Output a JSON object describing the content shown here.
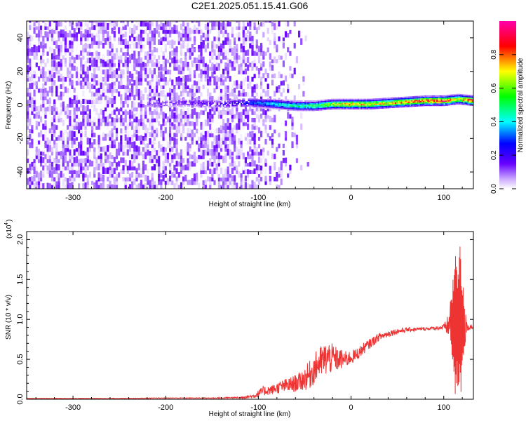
{
  "title": "C2E1.2025.051.15.41.G06",
  "chart_data": [
    {
      "type": "heatmap",
      "title": "C2E1.2025.051.15.41.G06",
      "xlabel": "Height of straight line (km)",
      "ylabel": "Frequency (Hz)",
      "xlim": [
        -350,
        132
      ],
      "ylim": [
        -50,
        50
      ],
      "x_ticks": [
        -300,
        -200,
        -100,
        0,
        100
      ],
      "x_tick_labels": [
        "-300",
        "-200",
        "-100",
        "0",
        "100"
      ],
      "y_ticks": [
        -40,
        -20,
        0,
        20,
        40
      ],
      "y_tick_labels": [
        "-40",
        "-20",
        "0",
        "20",
        "40"
      ],
      "colorbar": {
        "label": "Normalized spectral amplitude",
        "range": [
          0,
          1
        ],
        "ticks": [
          0.0,
          0.2,
          0.4,
          0.6,
          0.8
        ],
        "tick_labels": [
          "0.0",
          "0.2",
          "0.4",
          "0.6",
          "0.8"
        ],
        "colormap": [
          "#ffffff",
          "#6600ff",
          "#0000ff",
          "#00ffff",
          "#00ff00",
          "#ffff00",
          "#ff0000",
          "#ff00ff"
        ]
      },
      "noise_region": {
        "x_range": [
          -350,
          -100
        ],
        "fade_end": -45,
        "amplitude_range": [
          0.0,
          0.15
        ]
      },
      "signal_ridge": [
        {
          "x": -215,
          "frequency": 0,
          "amplitude": 0.12
        },
        {
          "x": -180,
          "frequency": 1,
          "amplitude": 0.15
        },
        {
          "x": -140,
          "frequency": 0,
          "amplitude": 0.2
        },
        {
          "x": -110,
          "frequency": 1,
          "amplitude": 0.3
        },
        {
          "x": -80,
          "frequency": 0,
          "amplitude": 0.45
        },
        {
          "x": -60,
          "frequency": -1,
          "amplitude": 0.5
        },
        {
          "x": -40,
          "frequency": -1,
          "amplitude": 0.55
        },
        {
          "x": -20,
          "frequency": 0,
          "amplitude": 0.7
        },
        {
          "x": 0,
          "frequency": 0,
          "amplitude": 0.8
        },
        {
          "x": 20,
          "frequency": 0,
          "amplitude": 0.75
        },
        {
          "x": 50,
          "frequency": 1,
          "amplitude": 0.8
        },
        {
          "x": 80,
          "frequency": 2,
          "amplitude": 0.9
        },
        {
          "x": 100,
          "frequency": 2,
          "amplitude": 0.95
        },
        {
          "x": 115,
          "frequency": 3,
          "amplitude": 0.7
        },
        {
          "x": 132,
          "frequency": 2,
          "amplitude": 0.9
        }
      ]
    },
    {
      "type": "line",
      "xlabel": "Height of straight line (km)",
      "ylabel": "SNR (10 * v/v)",
      "y_scale_label": "(x10",
      "y_scale_exponent": "4",
      "y_scale": 10000,
      "xlim": [
        -350,
        132
      ],
      "ylim": [
        0,
        2.1
      ],
      "x_ticks": [
        -300,
        -200,
        -100,
        0,
        100
      ],
      "x_tick_labels": [
        "-300",
        "-200",
        "-100",
        "0",
        "100"
      ],
      "y_ticks": [
        0,
        0.5,
        1.0,
        1.5,
        2.0
      ],
      "y_tick_labels": [
        "0.0",
        "0.5",
        "1.0",
        "1.5",
        "2.0"
      ],
      "color": "#ee3333",
      "series": [
        {
          "x": [
            -350,
            -300,
            -250,
            -200,
            -150,
            -120,
            -105,
            -95,
            -85,
            -75,
            -65,
            -55,
            -45,
            -35,
            -25,
            -15,
            -5,
            5,
            15,
            30,
            45,
            60,
            75,
            90,
            100,
            105,
            110,
            113,
            116,
            118,
            120,
            125,
            132
          ],
          "values": [
            0.01,
            0.01,
            0.01,
            0.015,
            0.015,
            0.02,
            0.04,
            0.1,
            0.12,
            0.16,
            0.18,
            0.22,
            0.3,
            0.45,
            0.52,
            0.5,
            0.5,
            0.55,
            0.65,
            0.78,
            0.84,
            0.87,
            0.88,
            0.89,
            0.9,
            0.92,
            0.95,
            1.0,
            0.9,
            1.0,
            0.88,
            0.9,
            0.92
          ],
          "spread": [
            0.003,
            0.003,
            0.003,
            0.004,
            0.005,
            0.01,
            0.03,
            0.06,
            0.06,
            0.08,
            0.1,
            0.12,
            0.18,
            0.2,
            0.22,
            0.15,
            0.1,
            0.08,
            0.07,
            0.05,
            0.04,
            0.03,
            0.02,
            0.02,
            0.04,
            0.15,
            0.5,
            0.95,
            0.8,
            0.9,
            0.6,
            0.05,
            0.04
          ]
        }
      ]
    }
  ]
}
